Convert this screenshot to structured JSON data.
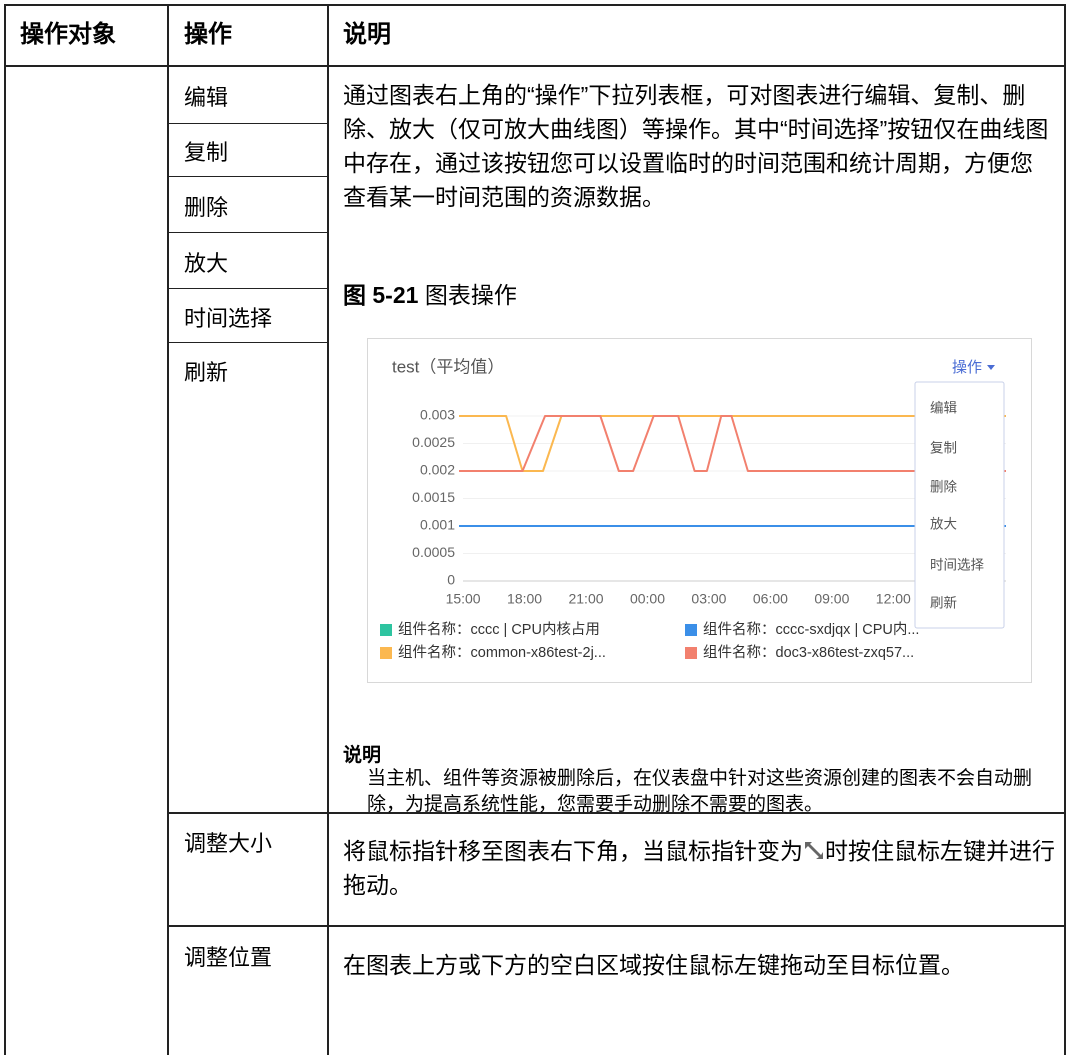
{
  "table": {
    "headers": [
      "操作对象",
      "操作",
      "说明"
    ],
    "rows": [
      {
        "operation": "编辑"
      },
      {
        "operation": "复制"
      },
      {
        "operation": "删除"
      },
      {
        "operation": "放大"
      },
      {
        "operation": "时间选择"
      },
      {
        "operation": "刷新"
      },
      {
        "operation": "调整大小",
        "description_before": "将鼠标指针移至图表右下角，当鼠标指针变为",
        "description_after": "时按住鼠标左键并进行拖动。"
      },
      {
        "operation": "调整位置",
        "description": "在图表上方或下方的空白区域按住鼠标左键拖动至目标位置。"
      }
    ]
  },
  "description": "通过图表右上角的“操作”下拉列表框，可对图表进行编辑、复制、删除、放大（仅可放大曲线图）等操作。其中“时间选择”按钮仅在曲线图中存在，通过该按钮您可以设置临时的时间范围和统计周期，方便您查看某一时间范围的资源数据。",
  "figure_caption": {
    "label": "图 5-21",
    "text": "图表操作"
  },
  "chart_data": {
    "type": "line",
    "title": "test（平均值）",
    "menu_button": "操作",
    "menu_items": [
      "编辑",
      "复制",
      "删除",
      "放大",
      "时间选择",
      "刷新"
    ],
    "xlim": [
      -0.2,
      26.5
    ],
    "xticks": [
      {
        "value": 0,
        "label": "15:00"
      },
      {
        "value": 3,
        "label": "18:00"
      },
      {
        "value": 6,
        "label": "21:00"
      },
      {
        "value": 9,
        "label": "00:00"
      },
      {
        "value": 12,
        "label": "03:00"
      },
      {
        "value": 15,
        "label": "06:00"
      },
      {
        "value": 18,
        "label": "09:00"
      },
      {
        "value": 21,
        "label": "12:00"
      }
    ],
    "ylim": [
      0,
      0.003
    ],
    "yticks": [
      0,
      0.0005,
      0.001,
      0.0015,
      0.002,
      0.0025,
      0.003
    ],
    "grid": true,
    "series": [
      {
        "name": "组件名称：cccc | CPU内核占用",
        "color": "#2ec4a0",
        "x": [],
        "values": []
      },
      {
        "name": "组件名称：cccc-sxdjqx | CPU内...",
        "color": "#3b8fe8",
        "x": [
          -0.2,
          26.5
        ],
        "values": [
          0.001,
          0.001
        ]
      },
      {
        "name": "组件名称：common-x86test-2j...",
        "color": "#fbb850",
        "x": [
          -0.2,
          2.1,
          2.9,
          3.9,
          4.8,
          26.5
        ],
        "values": [
          0.003,
          0.003,
          0.002,
          0.002,
          0.003,
          0.003
        ]
      },
      {
        "name": "组件名称：doc3-x86test-zxq57...",
        "color": "#f2806e",
        "x": [
          -0.2,
          2.9,
          4.0,
          6.7,
          7.6,
          8.3,
          9.3,
          10.5,
          11.3,
          11.9,
          12.6,
          13.1,
          13.9,
          26.5
        ],
        "values": [
          0.002,
          0.002,
          0.003,
          0.003,
          0.002,
          0.002,
          0.003,
          0.003,
          0.002,
          0.002,
          0.003,
          0.003,
          0.002,
          0.002
        ]
      }
    ]
  },
  "note": {
    "title": "说明",
    "text": "当主机、组件等资源被删除后，在仪表盘中针对这些资源创建的图表不会自动删除，为提高系统性能，您需要手动删除不需要的图表。"
  }
}
